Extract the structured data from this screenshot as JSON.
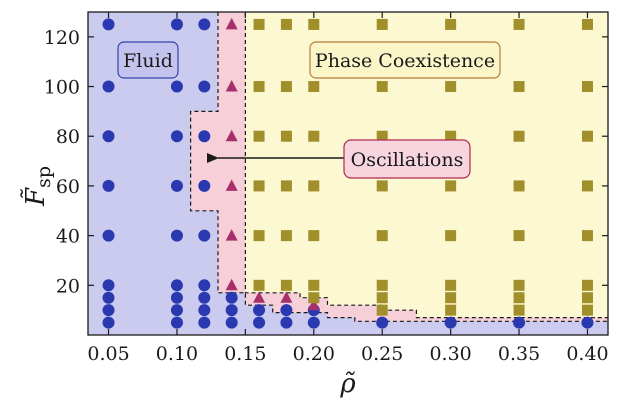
{
  "chart_data": {
    "type": "scatter",
    "xlabel": "ρ̃",
    "ylabel": "F̃",
    "ylabel_subscript": "sp",
    "xlim": [
      0.035,
      0.415
    ],
    "ylim": [
      0,
      130
    ],
    "x_ticks": [
      0.05,
      0.1,
      0.15,
      0.2,
      0.25,
      0.3,
      0.35,
      0.4
    ],
    "x_tick_labels": [
      "0.05",
      "0.10",
      "0.15",
      "0.20",
      "0.25",
      "0.30",
      "0.35",
      "0.40"
    ],
    "y_ticks": [
      20,
      40,
      60,
      80,
      100,
      120
    ],
    "y_tick_labels": [
      "20",
      "40",
      "60",
      "80",
      "100",
      "120"
    ],
    "grid": false,
    "annotations": {
      "fluid": "Fluid",
      "phase_coexistence": "Phase Coexistence",
      "oscillations": "Oscillations"
    },
    "colors": {
      "fluid_bg": "#cbcbef",
      "osc_bg": "#f6cfd8",
      "coex_bg": "#fbf8d2",
      "fluid_marker": "#2b39b0",
      "osc_marker": "#a8306a",
      "coex_marker": "#a08f2a",
      "fluid_box_border": "#3344aa",
      "coex_box_border": "#b87a3a",
      "osc_box_border": "#b02a50",
      "osc_box_fill": "#f7d5df"
    },
    "series": [
      {
        "name": "Fluid",
        "marker": "circle",
        "points": [
          [
            0.05,
            5
          ],
          [
            0.05,
            10
          ],
          [
            0.05,
            15
          ],
          [
            0.05,
            20
          ],
          [
            0.05,
            40
          ],
          [
            0.05,
            60
          ],
          [
            0.05,
            80
          ],
          [
            0.05,
            100
          ],
          [
            0.05,
            125
          ],
          [
            0.1,
            5
          ],
          [
            0.1,
            10
          ],
          [
            0.1,
            15
          ],
          [
            0.1,
            20
          ],
          [
            0.1,
            40
          ],
          [
            0.1,
            60
          ],
          [
            0.1,
            80
          ],
          [
            0.1,
            100
          ],
          [
            0.1,
            125
          ],
          [
            0.12,
            5
          ],
          [
            0.12,
            10
          ],
          [
            0.12,
            15
          ],
          [
            0.12,
            20
          ],
          [
            0.12,
            40
          ],
          [
            0.12,
            60
          ],
          [
            0.12,
            80
          ],
          [
            0.12,
            100
          ],
          [
            0.12,
            125
          ],
          [
            0.14,
            5
          ],
          [
            0.14,
            10
          ],
          [
            0.14,
            15
          ],
          [
            0.16,
            5
          ],
          [
            0.16,
            10
          ],
          [
            0.18,
            5
          ],
          [
            0.18,
            10
          ],
          [
            0.2,
            5
          ],
          [
            0.2,
            10
          ],
          [
            0.25,
            5
          ],
          [
            0.3,
            5
          ],
          [
            0.35,
            5
          ],
          [
            0.4,
            5
          ]
        ]
      },
      {
        "name": "Oscillations",
        "marker": "triangle",
        "points": [
          [
            0.14,
            20
          ],
          [
            0.14,
            40
          ],
          [
            0.14,
            60
          ],
          [
            0.14,
            80
          ],
          [
            0.14,
            100
          ],
          [
            0.14,
            125
          ],
          [
            0.16,
            15
          ],
          [
            0.18,
            15
          ],
          [
            0.2,
            12
          ]
        ]
      },
      {
        "name": "Phase Coexistence",
        "marker": "square",
        "points": [
          [
            0.16,
            20
          ],
          [
            0.16,
            40
          ],
          [
            0.16,
            60
          ],
          [
            0.16,
            80
          ],
          [
            0.16,
            100
          ],
          [
            0.16,
            125
          ],
          [
            0.18,
            20
          ],
          [
            0.18,
            40
          ],
          [
            0.18,
            60
          ],
          [
            0.18,
            80
          ],
          [
            0.18,
            100
          ],
          [
            0.18,
            125
          ],
          [
            0.2,
            15
          ],
          [
            0.2,
            20
          ],
          [
            0.2,
            40
          ],
          [
            0.2,
            60
          ],
          [
            0.2,
            80
          ],
          [
            0.2,
            100
          ],
          [
            0.2,
            125
          ],
          [
            0.25,
            10
          ],
          [
            0.25,
            15
          ],
          [
            0.25,
            20
          ],
          [
            0.25,
            40
          ],
          [
            0.25,
            60
          ],
          [
            0.25,
            80
          ],
          [
            0.25,
            100
          ],
          [
            0.25,
            125
          ],
          [
            0.3,
            10
          ],
          [
            0.3,
            15
          ],
          [
            0.3,
            20
          ],
          [
            0.3,
            40
          ],
          [
            0.3,
            60
          ],
          [
            0.3,
            80
          ],
          [
            0.3,
            100
          ],
          [
            0.3,
            125
          ],
          [
            0.35,
            10
          ],
          [
            0.35,
            15
          ],
          [
            0.35,
            20
          ],
          [
            0.35,
            40
          ],
          [
            0.35,
            60
          ],
          [
            0.35,
            80
          ],
          [
            0.35,
            100
          ],
          [
            0.35,
            125
          ],
          [
            0.4,
            10
          ],
          [
            0.4,
            15
          ],
          [
            0.4,
            20
          ],
          [
            0.4,
            40
          ],
          [
            0.4,
            60
          ],
          [
            0.4,
            80
          ],
          [
            0.4,
            100
          ],
          [
            0.4,
            125
          ]
        ]
      }
    ],
    "boundaries": {
      "fluid_oscillation": [
        [
          0.13,
          130
        ],
        [
          0.13,
          90
        ],
        [
          0.11,
          90
        ],
        [
          0.11,
          50
        ],
        [
          0.13,
          50
        ],
        [
          0.13,
          17
        ],
        [
          0.15,
          17
        ],
        [
          0.15,
          12
        ],
        [
          0.17,
          12
        ],
        [
          0.17,
          9
        ],
        [
          0.21,
          9
        ],
        [
          0.21,
          7
        ],
        [
          0.23,
          7
        ],
        [
          0.23,
          5.5
        ],
        [
          0.415,
          5.5
        ]
      ],
      "oscillation_coexistence": [
        [
          0.15,
          130
        ],
        [
          0.15,
          17
        ],
        [
          0.19,
          17
        ],
        [
          0.19,
          15
        ],
        [
          0.21,
          15
        ],
        [
          0.21,
          12
        ],
        [
          0.25,
          12
        ],
        [
          0.25,
          10
        ],
        [
          0.275,
          10
        ],
        [
          0.275,
          7
        ],
        [
          0.415,
          7
        ]
      ]
    }
  }
}
